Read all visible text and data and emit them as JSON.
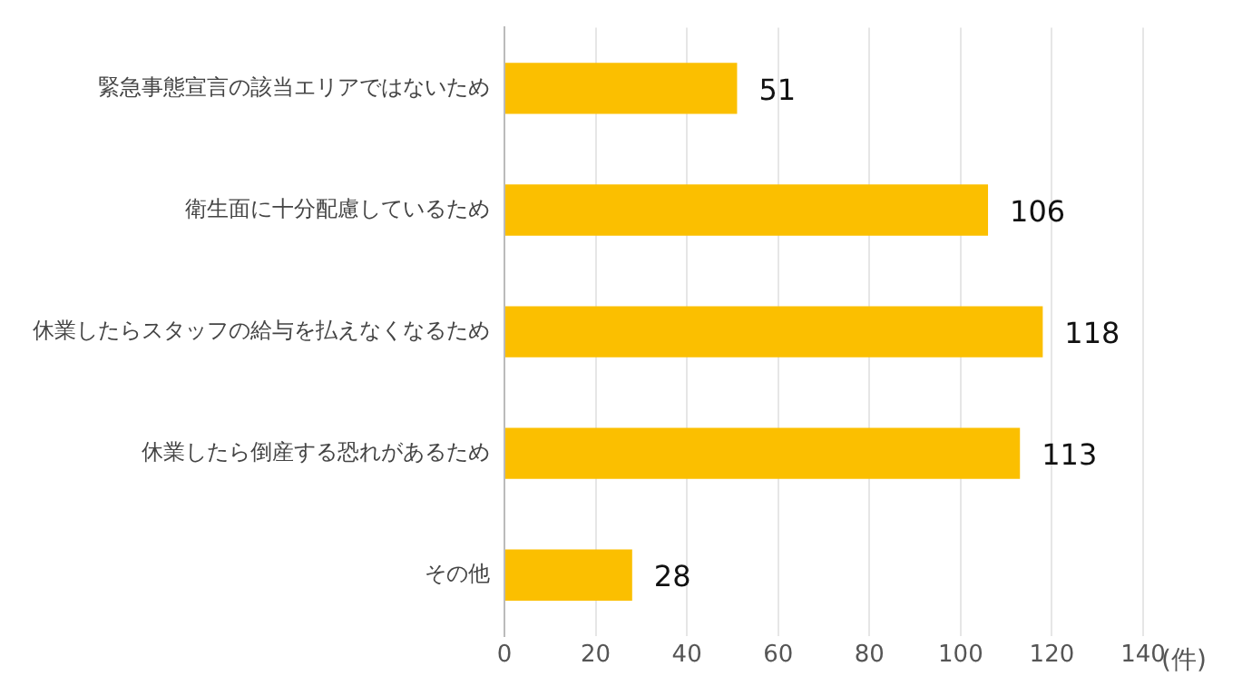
{
  "chart_data": {
    "type": "bar",
    "orientation": "horizontal",
    "xlabel": "(件)",
    "categories": [
      "緊急事態宣言の該当エリアではないため",
      "衛生面に十分配慮しているため",
      "休業したらスタッフの給与を払えなくなるため",
      "休業したら倒産する恐れがあるため",
      "その他"
    ],
    "values": [
      51,
      106,
      118,
      113,
      28
    ],
    "color": "#fbbf00",
    "xlim": [
      0,
      140
    ],
    "xticks": [
      0,
      20,
      40,
      60,
      80,
      100,
      120,
      140
    ],
    "grid": "x",
    "data_labels": true
  }
}
